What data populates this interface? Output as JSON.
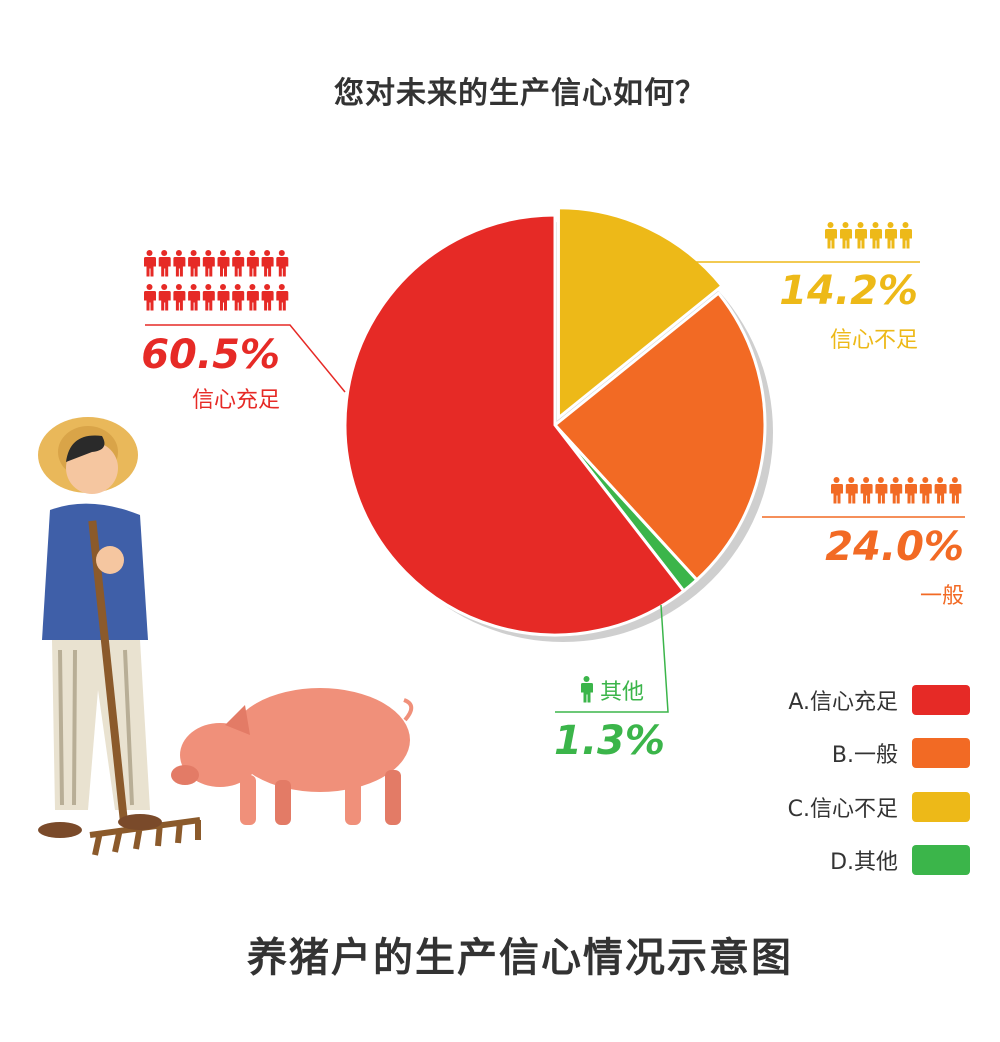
{
  "title": "您对未来的生产信心如何？",
  "footer": "养猪户的生产信心情况示意图",
  "chart_data": {
    "type": "pie",
    "title": "您对未来的生产信心如何？",
    "start": "top",
    "direction": "clockwise",
    "slices": [
      {
        "key": "C",
        "label": "信心不足",
        "legend": "C.信心不足",
        "value": 14.2,
        "display": "14.2%",
        "color": "#EDB918",
        "icon_count": 6,
        "exploded": true
      },
      {
        "key": "B",
        "label": "一般",
        "legend": "B.一般",
        "value": 24.0,
        "display": "24.0%",
        "color": "#F26A24",
        "icon_count": 9
      },
      {
        "key": "D",
        "label": "其他",
        "legend": "D.其他",
        "value": 1.3,
        "display": "1.3%",
        "color": "#3BB54A",
        "icon_count": 1
      },
      {
        "key": "A",
        "label": "信心充足",
        "legend": "A.信心充足",
        "value": 60.5,
        "display": "60.5%",
        "color": "#E62A26",
        "icon_count": 20
      }
    ],
    "legend_order": [
      "A",
      "B",
      "C",
      "D"
    ],
    "legend_placement": "bottom-right"
  }
}
